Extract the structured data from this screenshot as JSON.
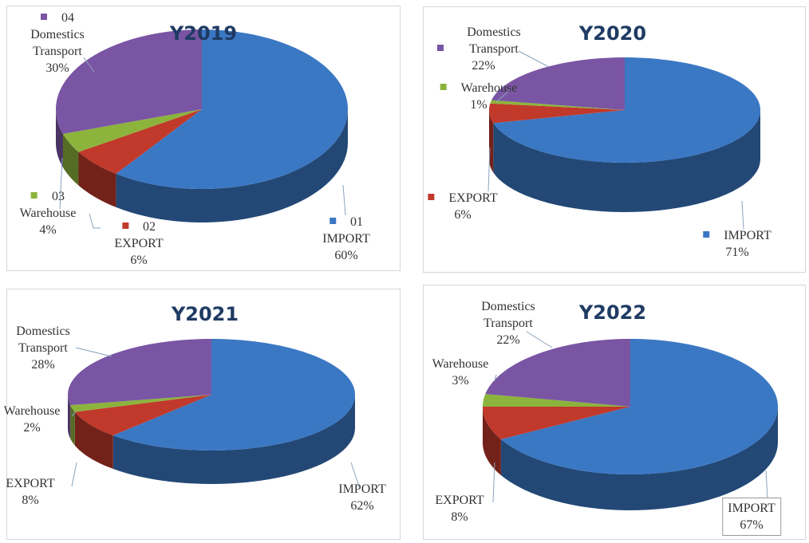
{
  "colors": {
    "IMPORT": "#3b78c4",
    "EXPORT": "#c0392b",
    "Warehouse": "#8cb43c",
    "Domestics": "#7a55a3",
    "title": "#1f3b63"
  },
  "chart_data": [
    {
      "type": "pie",
      "title": "Y2019",
      "categories": [
        "IMPORT",
        "EXPORT",
        "Warehouse",
        "Domestics Transport"
      ],
      "numbers": [
        "01",
        "02",
        "03",
        "04"
      ],
      "values": [
        60,
        6,
        4,
        30
      ],
      "labels": [
        "60%",
        "6%",
        "4%",
        "30%"
      ],
      "legend_markers": true
    },
    {
      "type": "pie",
      "title": "Y2020",
      "categories": [
        "IMPORT",
        "EXPORT",
        "Warehouse",
        "Domestics Transport"
      ],
      "values": [
        71,
        6,
        1,
        22
      ],
      "labels": [
        "71%",
        "6%",
        "1%",
        "22%"
      ],
      "legend_markers": true
    },
    {
      "type": "pie",
      "title": "Y2021",
      "categories": [
        "IMPORT",
        "EXPORT",
        "Warehouse",
        "Domestics Transport"
      ],
      "values": [
        62,
        8,
        2,
        28
      ],
      "labels": [
        "62%",
        "8%",
        "2%",
        "28%"
      ],
      "legend_markers": false
    },
    {
      "type": "pie",
      "title": "Y2022",
      "categories": [
        "IMPORT",
        "EXPORT",
        "Warehouse",
        "Domestics Transport"
      ],
      "values": [
        67,
        8,
        3,
        22
      ],
      "labels": [
        "67%",
        "8%",
        "3%",
        "22%"
      ],
      "legend_markers": false
    }
  ]
}
